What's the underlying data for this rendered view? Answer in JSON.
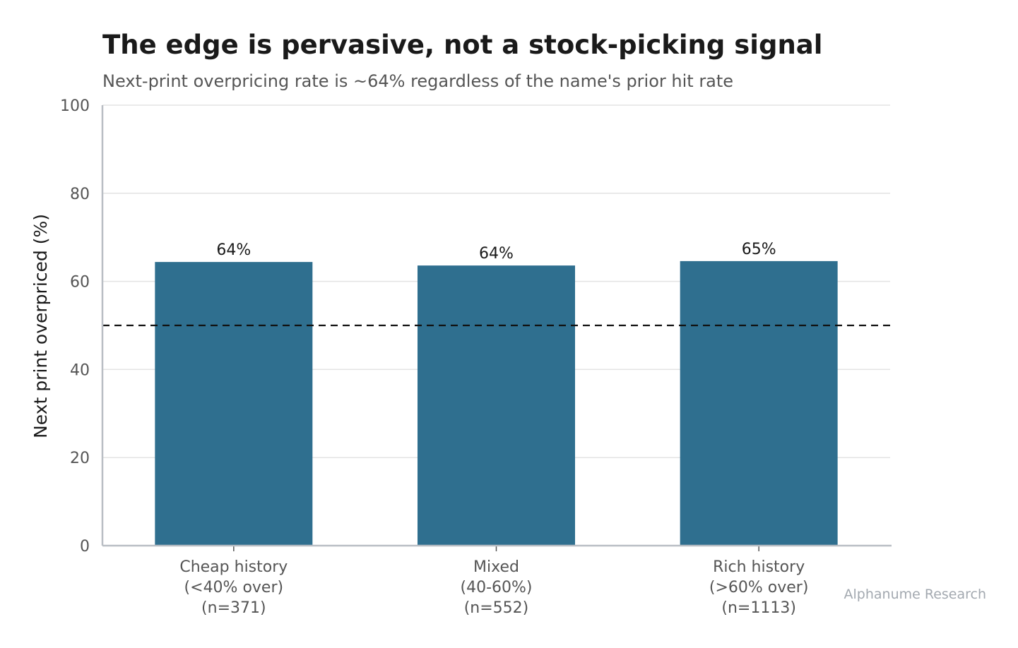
{
  "chart_data": {
    "type": "bar",
    "title": "The edge is pervasive, not a stock-picking signal",
    "subtitle": "Next-print overpricing rate is ~64% regardless of the name's prior hit rate",
    "ylabel": "Next print overpriced (%)",
    "xlabel": "",
    "ylim": [
      0,
      100
    ],
    "yticks": [
      "0",
      "20",
      "40",
      "60",
      "80",
      "100"
    ],
    "ytick_values": [
      0,
      20,
      40,
      60,
      80,
      100
    ],
    "categories": [
      [
        "Cheap history",
        "(<40% over)",
        "(n=371)"
      ],
      [
        "Mixed",
        "(40-60%)",
        "(n=552)"
      ],
      [
        "Rich history",
        "(>60% over)",
        "(n=1113)"
      ]
    ],
    "values": [
      64.4,
      63.6,
      64.6
    ],
    "value_labels": [
      "64%",
      "64%",
      "65%"
    ],
    "reference_line": 50,
    "bar_color": "#2f6f8f",
    "grid": true,
    "source": "Alphanume Research"
  }
}
